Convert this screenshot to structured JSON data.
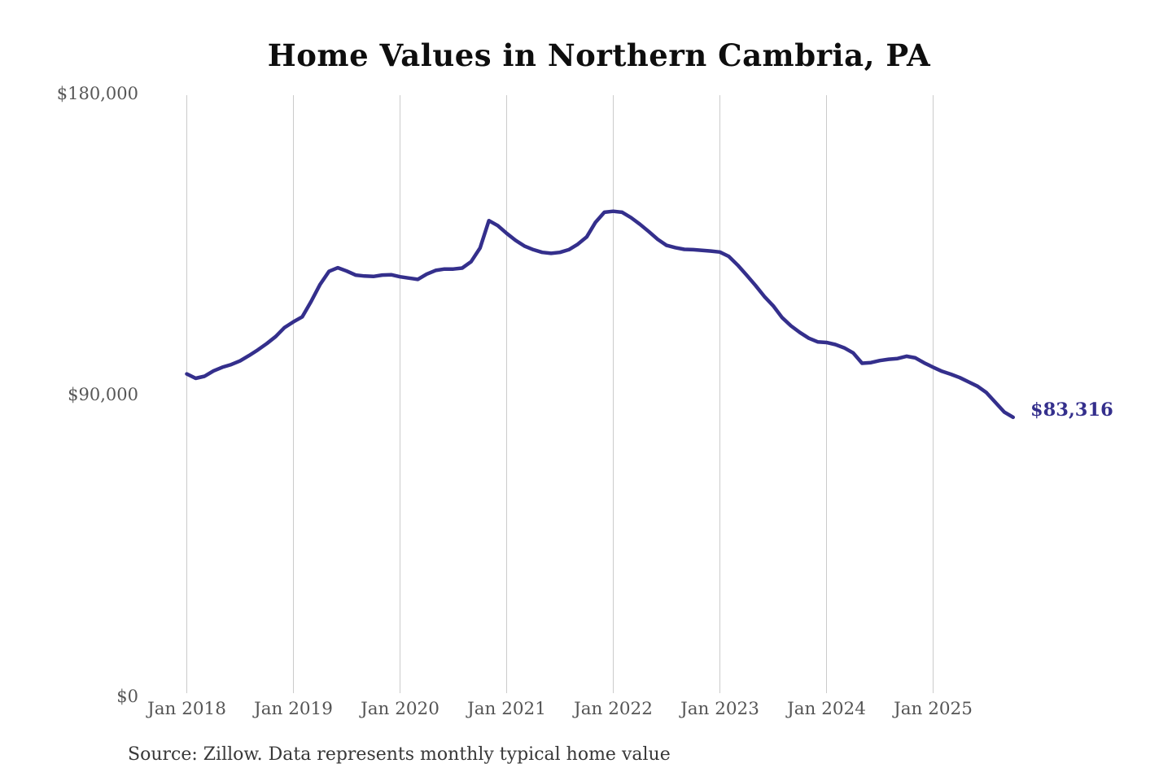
{
  "title": "Home Values in Northern Cambria, PA",
  "source_note": "Source: Zillow. Data represents monthly typical home value",
  "colors": {
    "line": "#342f8c",
    "grid": "#cbcbcb",
    "axis_text": "#575757",
    "title_text": "#0e0e0e",
    "source_text": "#383838"
  },
  "chart_data": {
    "type": "line",
    "title": "Home Values in Northern Cambria, PA",
    "series_name": "Monthly typical home value (Zillow)",
    "xlabel": "",
    "ylabel": "",
    "ylim": [
      0,
      180000
    ],
    "grid": "vertical-only",
    "legend": "none",
    "last_point_label": "$83,316",
    "last_value": 83316,
    "yticks": [
      {
        "label": "$180,000",
        "value": 180000
      },
      {
        "label": "$90,000",
        "value": 90000
      },
      {
        "label": "$0",
        "value": 0
      }
    ],
    "xticks": [
      {
        "label": "Jan 2018",
        "month_index": 0
      },
      {
        "label": "Jan 2019",
        "month_index": 12
      },
      {
        "label": "Jan 2020",
        "month_index": 24
      },
      {
        "label": "Jan 2021",
        "month_index": 36
      },
      {
        "label": "Jan 2022",
        "month_index": 48
      },
      {
        "label": "Jan 2023",
        "month_index": 60
      },
      {
        "label": "Jan 2024",
        "month_index": 72
      },
      {
        "label": "Jan 2025",
        "month_index": 84
      }
    ],
    "x": [
      "2018-01",
      "2018-02",
      "2018-03",
      "2018-04",
      "2018-05",
      "2018-06",
      "2018-07",
      "2018-08",
      "2018-09",
      "2018-10",
      "2018-11",
      "2018-12",
      "2019-01",
      "2019-02",
      "2019-03",
      "2019-04",
      "2019-05",
      "2019-06",
      "2019-07",
      "2019-08",
      "2019-09",
      "2019-10",
      "2019-11",
      "2019-12",
      "2020-01",
      "2020-02",
      "2020-03",
      "2020-04",
      "2020-05",
      "2020-06",
      "2020-07",
      "2020-08",
      "2020-09",
      "2020-10",
      "2020-11",
      "2020-12",
      "2021-01",
      "2021-02",
      "2021-03",
      "2021-04",
      "2021-05",
      "2021-06",
      "2021-07",
      "2021-08",
      "2021-09",
      "2021-10",
      "2021-11",
      "2021-12",
      "2022-01",
      "2022-02",
      "2022-03",
      "2022-04",
      "2022-05",
      "2022-06",
      "2022-07",
      "2022-08",
      "2022-09",
      "2022-10",
      "2022-11",
      "2022-12",
      "2023-01",
      "2023-02",
      "2023-03",
      "2023-04",
      "2023-05",
      "2023-06",
      "2023-07",
      "2023-08",
      "2023-09",
      "2023-10",
      "2023-11",
      "2023-12",
      "2024-01",
      "2024-02",
      "2024-03",
      "2024-04",
      "2024-05",
      "2024-06",
      "2024-07",
      "2024-08",
      "2024-09",
      "2024-10",
      "2024-11",
      "2024-12",
      "2025-01",
      "2025-02",
      "2025-03",
      "2025-04",
      "2025-05",
      "2025-06",
      "2025-07",
      "2025-08",
      "2025-09",
      "2025-10"
    ],
    "values": [
      96300,
      95000,
      95600,
      97200,
      98300,
      99100,
      100200,
      101800,
      103500,
      105400,
      107500,
      110200,
      111900,
      113400,
      118000,
      123100,
      127000,
      128100,
      127100,
      125900,
      125600,
      125500,
      125900,
      126000,
      125400,
      125000,
      124600,
      126200,
      127300,
      127700,
      127700,
      128000,
      129900,
      134000,
      142200,
      140700,
      138400,
      136300,
      134600,
      133500,
      132700,
      132400,
      132700,
      133500,
      135100,
      137300,
      141700,
      144700,
      145000,
      144700,
      143100,
      141100,
      138900,
      136600,
      134800,
      134100,
      133600,
      133500,
      133300,
      133100,
      132800,
      131500,
      128900,
      125900,
      122800,
      119500,
      116700,
      113200,
      110700,
      108700,
      107000,
      105900,
      105700,
      105100,
      104100,
      102600,
      99500,
      99700,
      100300,
      100700,
      100900,
      101600,
      101100,
      99600,
      98300,
      97100,
      96200,
      95200,
      93900,
      92600,
      90700,
      87800,
      84900,
      83316
    ]
  }
}
